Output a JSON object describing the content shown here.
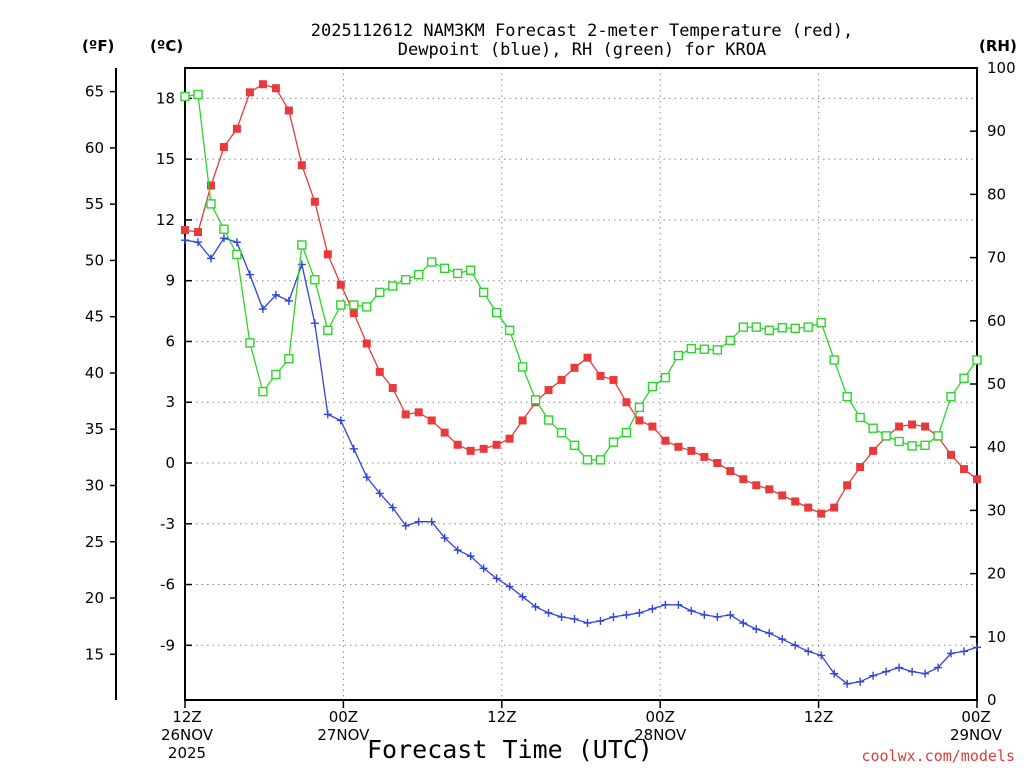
{
  "chart_data": {
    "type": "line",
    "title_lines": [
      "2025112612 NAM3KM Forecast 2-meter Temperature (red),",
      "Dewpoint (blue), RH (green) for KROA"
    ],
    "units": {
      "fahrenheit": "(ºF)",
      "celsius": "(ºC)",
      "rh": "(RH)"
    },
    "xlabel": "Forecast Time (UTC)",
    "credit": "coolwx.com/models",
    "x_hours_range": [
      0,
      60
    ],
    "x_ticks": [
      {
        "hour": 0,
        "lines": [
          "12Z",
          "26NOV",
          "2025"
        ]
      },
      {
        "hour": 12,
        "lines": [
          "00Z",
          "27NOV"
        ]
      },
      {
        "hour": 24,
        "lines": [
          "12Z"
        ]
      },
      {
        "hour": 36,
        "lines": [
          "00Z",
          "28NOV"
        ]
      },
      {
        "hour": 48,
        "lines": [
          "12Z"
        ]
      },
      {
        "hour": 60,
        "lines": [
          "00Z",
          "29NOV"
        ]
      }
    ],
    "y_celsius": {
      "range": [
        -11.7,
        19.5
      ],
      "ticks": [
        "18",
        "15",
        "12",
        "9",
        "6",
        "3",
        "0",
        "-3",
        "-6",
        "-9"
      ]
    },
    "y_fahrenheit": {
      "ticks": [
        "65",
        "60",
        "55",
        "50",
        "45",
        "40",
        "35",
        "30",
        "25",
        "20",
        "15"
      ]
    },
    "y_rh": {
      "range": [
        0,
        100
      ],
      "ticks": [
        "100",
        "90",
        "80",
        "70",
        "60",
        "50",
        "40",
        "30",
        "20",
        "10",
        "0"
      ]
    },
    "grid": true,
    "series": [
      {
        "name": "2-meter Temperature",
        "unit": "C",
        "color": "#e83a3a",
        "marker": "filled-square",
        "values": [
          11.5,
          11.4,
          13.7,
          15.6,
          16.5,
          18.3,
          18.7,
          18.5,
          17.4,
          14.7,
          12.9,
          10.3,
          8.8,
          7.4,
          5.9,
          4.5,
          3.7,
          2.4,
          2.5,
          2.1,
          1.5,
          0.9,
          0.6,
          0.7,
          0.9,
          1.2,
          2.1,
          3.0,
          3.6,
          4.1,
          4.7,
          5.2,
          4.3,
          4.1,
          3.0,
          2.1,
          1.8,
          1.1,
          0.8,
          0.6,
          0.3,
          0.0,
          -0.4,
          -0.8,
          -1.1,
          -1.3,
          -1.6,
          -1.9,
          -2.2,
          -2.5,
          -2.2,
          -1.1,
          -0.2,
          0.6,
          1.3,
          1.8,
          1.9,
          1.8,
          1.3,
          0.4,
          -0.3,
          -0.8
        ]
      },
      {
        "name": "Dewpoint",
        "unit": "C",
        "color": "#2f45d8",
        "marker": "plus",
        "values": [
          11.0,
          10.9,
          10.1,
          11.1,
          10.9,
          9.3,
          7.6,
          8.3,
          8.0,
          9.8,
          6.9,
          2.4,
          2.1,
          0.7,
          -0.7,
          -1.5,
          -2.2,
          -3.1,
          -2.9,
          -2.9,
          -3.7,
          -4.3,
          -4.6,
          -5.2,
          -5.7,
          -6.1,
          -6.6,
          -7.1,
          -7.4,
          -7.6,
          -7.7,
          -7.9,
          -7.8,
          -7.6,
          -7.5,
          -7.4,
          -7.2,
          -7.0,
          -7.0,
          -7.3,
          -7.5,
          -7.6,
          -7.5,
          -7.9,
          -8.2,
          -8.4,
          -8.7,
          -9.0,
          -9.3,
          -9.5,
          -10.4,
          -10.9,
          -10.8,
          -10.5,
          -10.3,
          -10.1,
          -10.3,
          -10.4,
          -10.1,
          -9.4,
          -9.3,
          -9.1
        ]
      },
      {
        "name": "RH",
        "unit": "%",
        "color": "#2ad62a",
        "marker": "open-square",
        "values": [
          95.5,
          95.8,
          78.5,
          74.5,
          70.5,
          56.5,
          48.8,
          51.5,
          54.0,
          72.0,
          66.5,
          58.5,
          62.5,
          62.5,
          62.2,
          64.5,
          65.5,
          66.5,
          67.3,
          69.3,
          68.3,
          67.5,
          68.0,
          64.5,
          61.3,
          58.5,
          52.7,
          47.5,
          44.3,
          42.3,
          40.3,
          38.0,
          38.0,
          40.8,
          42.3,
          46.3,
          49.6,
          51.0,
          54.5,
          55.6,
          55.5,
          55.4,
          56.9,
          59.0,
          59.0,
          58.5,
          58.9,
          58.8,
          59.0,
          59.7,
          53.8,
          48.0,
          44.7,
          43.0,
          41.8,
          40.9,
          40.2,
          40.3,
          41.8,
          48.0,
          50.9,
          53.8
        ]
      }
    ]
  }
}
